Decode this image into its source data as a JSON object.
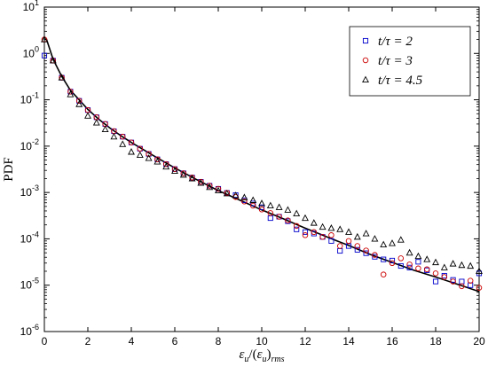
{
  "chart_data": {
    "type": "scatter",
    "xlabel": "ε_u/(ε_u)_rms",
    "xlabel_parts": {
      "eps": "ε",
      "sub_u": "u",
      "mid": "/(",
      "eps2": "ε",
      "sub_u2": "u",
      "close": ")",
      "sub_rms": "rms"
    },
    "ylabel": "PDF",
    "xlim": [
      0,
      20
    ],
    "ylim_log10": [
      -6,
      1
    ],
    "yscale": "log",
    "grid": false,
    "legend_position": "top-right",
    "x_ticks": [
      "0",
      "2",
      "4",
      "6",
      "8",
      "10",
      "12",
      "14",
      "16",
      "18",
      "20"
    ],
    "y_ticks": [
      {
        "base": "10",
        "exp": "-6",
        "value": -6
      },
      {
        "base": "10",
        "exp": "-5",
        "value": -5
      },
      {
        "base": "10",
        "exp": "-4",
        "value": -4
      },
      {
        "base": "10",
        "exp": "-3",
        "value": -3
      },
      {
        "base": "10",
        "exp": "-2",
        "value": -2
      },
      {
        "base": "10",
        "exp": "-1",
        "value": -1
      },
      {
        "base": "10",
        "exp": "0",
        "value": 0
      },
      {
        "base": "10",
        "exp": "1",
        "value": 1
      }
    ],
    "series": [
      {
        "name": "t/τ = 2",
        "marker": "square",
        "color": "#0000cc",
        "points": [
          [
            0,
            0.9
          ],
          [
            0.4,
            0.7
          ],
          [
            0.8,
            0.3
          ],
          [
            1.2,
            0.15
          ],
          [
            1.6,
            0.095
          ],
          [
            2.0,
            0.06
          ],
          [
            2.4,
            0.042
          ],
          [
            2.8,
            0.03
          ],
          [
            3.2,
            0.021
          ],
          [
            3.6,
            0.016
          ],
          [
            4.0,
            0.012
          ],
          [
            4.4,
            0.0088
          ],
          [
            4.8,
            0.0068
          ],
          [
            5.2,
            0.0052
          ],
          [
            5.6,
            0.0041
          ],
          [
            6.0,
            0.0032
          ],
          [
            6.4,
            0.0026
          ],
          [
            6.8,
            0.0021
          ],
          [
            7.2,
            0.0017
          ],
          [
            7.6,
            0.0014
          ],
          [
            8.0,
            0.0012
          ],
          [
            8.4,
            0.00098
          ],
          [
            8.8,
            0.00088
          ],
          [
            9.2,
            0.00068
          ],
          [
            9.6,
            0.00058
          ],
          [
            10.0,
            0.00048
          ],
          [
            10.4,
            0.00028
          ],
          [
            10.8,
            0.0003
          ],
          [
            11.2,
            0.00024
          ],
          [
            11.6,
            0.00016
          ],
          [
            12.0,
            0.00014
          ],
          [
            12.4,
            0.00013
          ],
          [
            12.8,
            0.00011
          ],
          [
            13.2,
            9e-05
          ],
          [
            13.6,
            5.5e-05
          ],
          [
            14.0,
            7e-05
          ],
          [
            14.4,
            5.8e-05
          ],
          [
            14.8,
            4.9e-05
          ],
          [
            15.2,
            4.1e-05
          ],
          [
            15.6,
            3.6e-05
          ],
          [
            16.0,
            3.4e-05
          ],
          [
            16.4,
            2.6e-05
          ],
          [
            16.8,
            2.4e-05
          ],
          [
            17.2,
            3.2e-05
          ],
          [
            17.6,
            2.1e-05
          ],
          [
            18.0,
            1.2e-05
          ],
          [
            18.4,
            1.6e-05
          ],
          [
            18.8,
            1.3e-05
          ],
          [
            19.2,
            1.2e-05
          ],
          [
            19.6,
            1e-05
          ],
          [
            20.0,
            1.8e-05
          ]
        ]
      },
      {
        "name": "t/τ = 3",
        "marker": "circle",
        "color": "#cc0000",
        "points": [
          [
            0,
            2.0
          ],
          [
            0.4,
            0.7
          ],
          [
            0.8,
            0.3
          ],
          [
            1.2,
            0.15
          ],
          [
            1.6,
            0.095
          ],
          [
            2.0,
            0.06
          ],
          [
            2.4,
            0.042
          ],
          [
            2.8,
            0.03
          ],
          [
            3.2,
            0.021
          ],
          [
            3.6,
            0.016
          ],
          [
            4.0,
            0.012
          ],
          [
            4.4,
            0.0088
          ],
          [
            4.8,
            0.0068
          ],
          [
            5.2,
            0.0052
          ],
          [
            5.6,
            0.0041
          ],
          [
            6.0,
            0.0032
          ],
          [
            6.4,
            0.0026
          ],
          [
            6.8,
            0.0021
          ],
          [
            7.2,
            0.0017
          ],
          [
            7.6,
            0.0014
          ],
          [
            8.0,
            0.0012
          ],
          [
            8.4,
            0.00098
          ],
          [
            8.8,
            0.0008
          ],
          [
            9.2,
            0.00064
          ],
          [
            9.6,
            0.00052
          ],
          [
            10.0,
            0.00043
          ],
          [
            10.4,
            0.00036
          ],
          [
            10.8,
            0.0003
          ],
          [
            11.2,
            0.00025
          ],
          [
            11.6,
            0.00019
          ],
          [
            12.0,
            0.00012
          ],
          [
            12.4,
            0.00014
          ],
          [
            12.8,
            0.00011
          ],
          [
            13.2,
            0.00012
          ],
          [
            13.6,
            7e-05
          ],
          [
            14.0,
            9e-05
          ],
          [
            14.4,
            7e-05
          ],
          [
            14.8,
            5.6e-05
          ],
          [
            15.2,
            4.5e-05
          ],
          [
            15.6,
            1.7e-05
          ],
          [
            16.0,
            3e-05
          ],
          [
            16.4,
            3.8e-05
          ],
          [
            16.8,
            2.8e-05
          ],
          [
            17.2,
            2.3e-05
          ],
          [
            17.6,
            2.2e-05
          ],
          [
            18.0,
            1.8e-05
          ],
          [
            18.4,
            1.5e-05
          ],
          [
            18.8,
            1.2e-05
          ],
          [
            19.2,
            9.5e-06
          ],
          [
            19.6,
            1.25e-05
          ],
          [
            20.0,
            8.8e-06
          ]
        ]
      },
      {
        "name": "t/τ = 4.5",
        "marker": "triangle",
        "color": "#000000",
        "points": [
          [
            0,
            2.0
          ],
          [
            0.4,
            0.7
          ],
          [
            0.8,
            0.3
          ],
          [
            1.2,
            0.13
          ],
          [
            1.6,
            0.08
          ],
          [
            2.0,
            0.045
          ],
          [
            2.4,
            0.032
          ],
          [
            2.8,
            0.023
          ],
          [
            3.2,
            0.016
          ],
          [
            3.6,
            0.011
          ],
          [
            4.0,
            0.0075
          ],
          [
            4.4,
            0.0064
          ],
          [
            4.8,
            0.0055
          ],
          [
            5.2,
            0.0046
          ],
          [
            5.6,
            0.0036
          ],
          [
            6.0,
            0.0029
          ],
          [
            6.4,
            0.0024
          ],
          [
            6.8,
            0.002
          ],
          [
            7.2,
            0.0016
          ],
          [
            7.6,
            0.0013
          ],
          [
            8.0,
            0.0011
          ],
          [
            8.4,
            0.00095
          ],
          [
            8.8,
            0.00086
          ],
          [
            9.2,
            0.00078
          ],
          [
            9.6,
            0.00068
          ],
          [
            10.0,
            0.00058
          ],
          [
            10.4,
            0.00052
          ],
          [
            10.8,
            0.00048
          ],
          [
            11.2,
            0.00042
          ],
          [
            11.6,
            0.00035
          ],
          [
            12.0,
            0.00028
          ],
          [
            12.4,
            0.00022
          ],
          [
            12.8,
            0.00018
          ],
          [
            13.2,
            0.00017
          ],
          [
            13.6,
            0.00016
          ],
          [
            14.0,
            0.00014
          ],
          [
            14.4,
            0.00011
          ],
          [
            14.8,
            0.00013
          ],
          [
            15.2,
            0.0001
          ],
          [
            15.6,
            7.5e-05
          ],
          [
            16.0,
            8e-05
          ],
          [
            16.4,
            9.5e-05
          ],
          [
            16.8,
            5e-05
          ],
          [
            17.2,
            4.2e-05
          ],
          [
            17.6,
            3.6e-05
          ],
          [
            18.0,
            3.1e-05
          ],
          [
            18.4,
            2.4e-05
          ],
          [
            18.8,
            2.9e-05
          ],
          [
            19.2,
            2.7e-05
          ],
          [
            19.6,
            2.6e-05
          ],
          [
            20.0,
            2e-05
          ]
        ]
      }
    ],
    "fit_line": {
      "color": "#000000",
      "points": [
        [
          0,
          2.0
        ],
        [
          0.1,
          2.0
        ],
        [
          0.4,
          0.75
        ],
        [
          0.8,
          0.32
        ],
        [
          1.2,
          0.16
        ],
        [
          1.6,
          0.1
        ],
        [
          2,
          0.062
        ],
        [
          2.5,
          0.038
        ],
        [
          3,
          0.025
        ],
        [
          3.5,
          0.017
        ],
        [
          4,
          0.012
        ],
        [
          5,
          0.0063
        ],
        [
          6,
          0.0034
        ],
        [
          7,
          0.0019
        ],
        [
          8,
          0.0011
        ],
        [
          9,
          0.00068
        ],
        [
          10,
          0.00042
        ],
        [
          11,
          0.00027
        ],
        [
          12,
          0.00017
        ],
        [
          13,
          0.00011
        ],
        [
          14,
          7.2e-05
        ],
        [
          15,
          4.6e-05
        ],
        [
          16,
          3.1e-05
        ],
        [
          17,
          2.1e-05
        ],
        [
          18,
          1.5e-05
        ],
        [
          19,
          1.05e-05
        ],
        [
          20,
          7.3e-06
        ]
      ]
    }
  }
}
